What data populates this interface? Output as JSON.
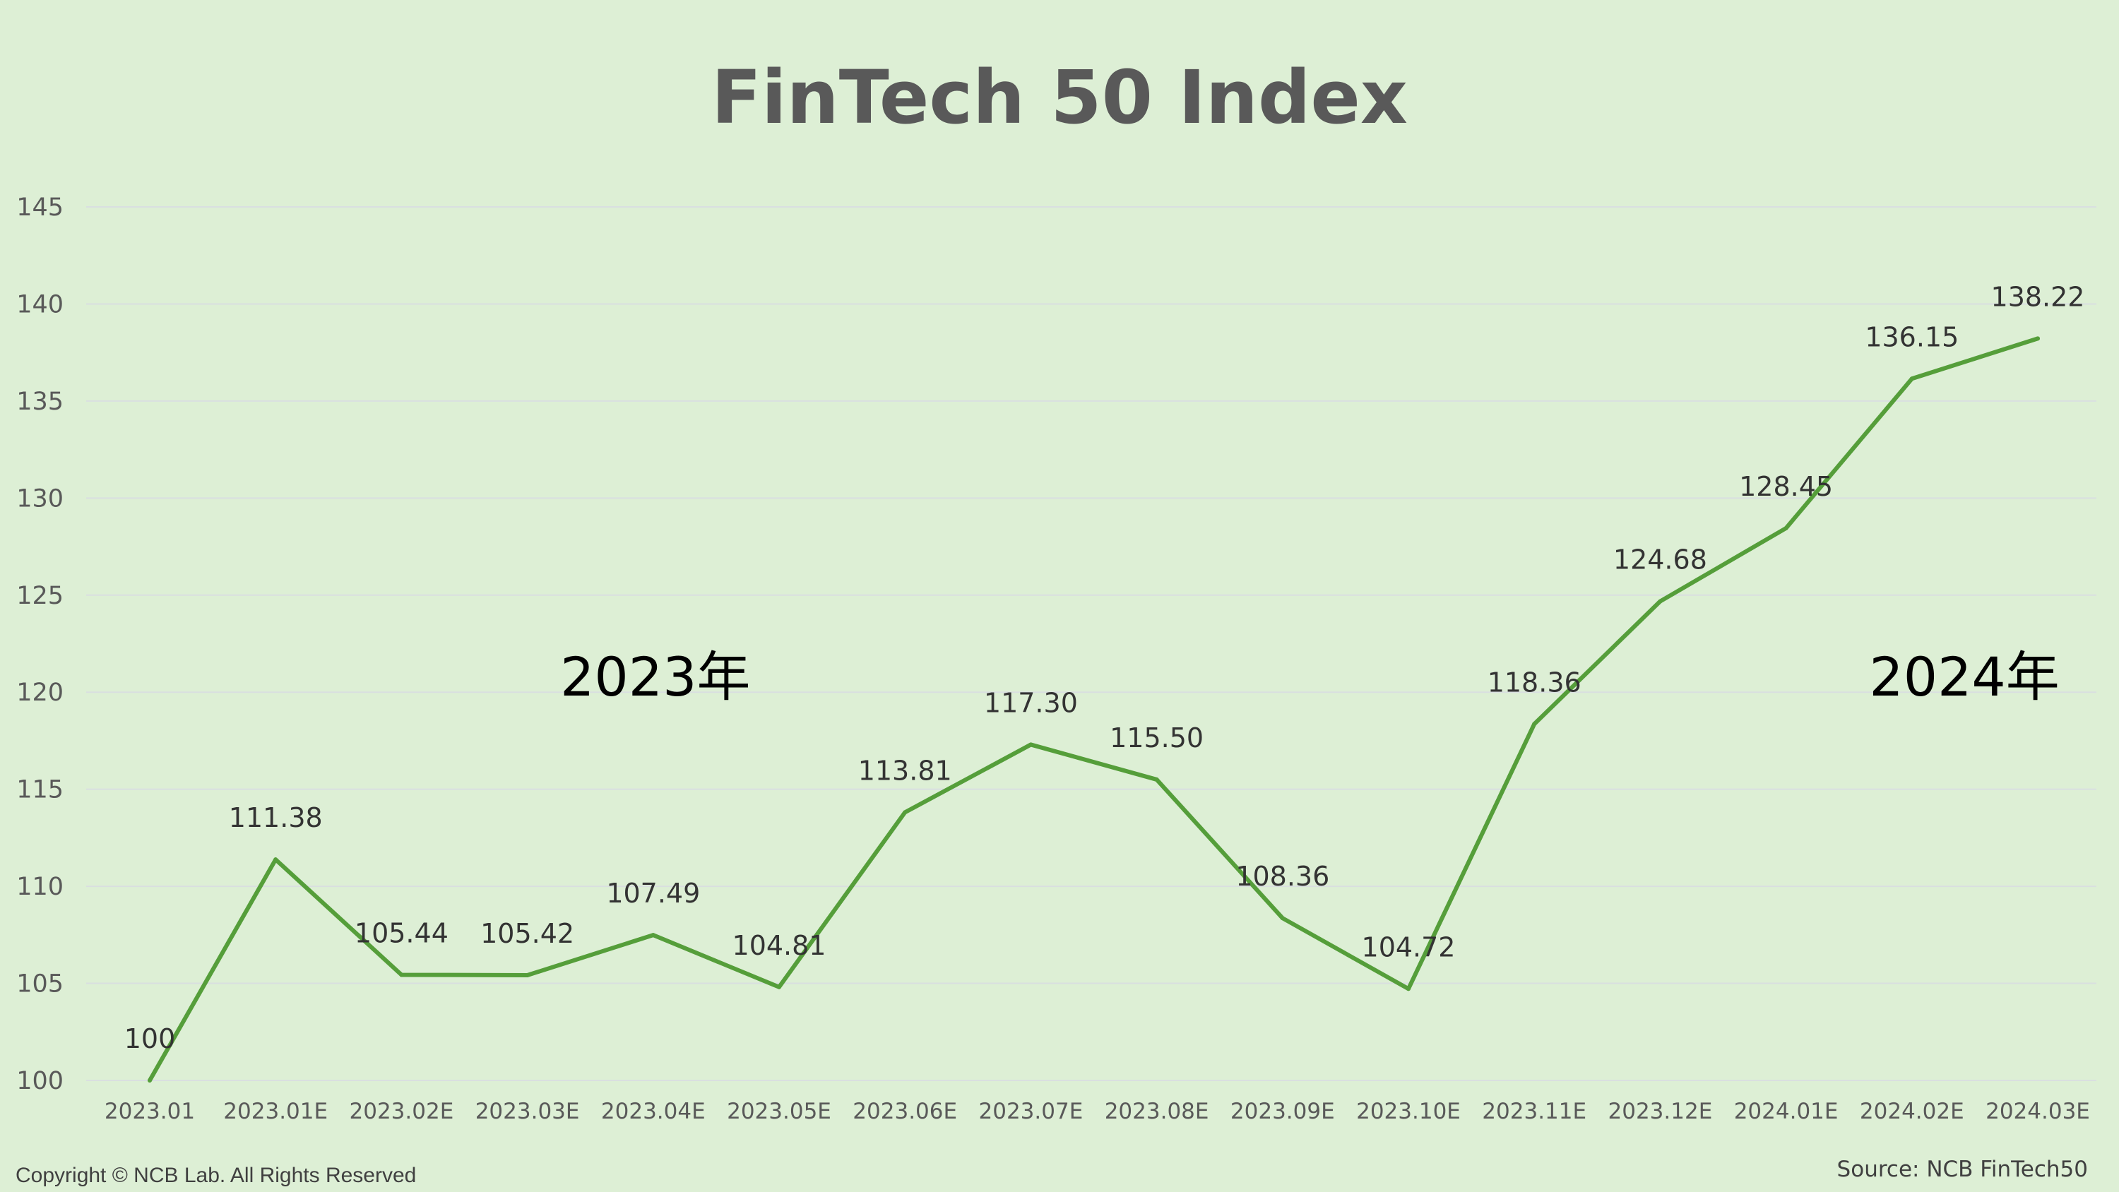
{
  "chart_data": {
    "type": "line",
    "title": "FinTech 50 Index",
    "categories": [
      "2023.01",
      "2023.01E",
      "2023.02E",
      "2023.03E",
      "2023.04E",
      "2023.05E",
      "2023.06E",
      "2023.07E",
      "2023.08E",
      "2023.09E",
      "2023.10E",
      "2023.11E",
      "2023.12E",
      "2024.01E",
      "2024.02E",
      "2024.03E"
    ],
    "series": [
      {
        "values": [
          100,
          111.38,
          105.44,
          105.42,
          107.49,
          104.81,
          113.81,
          117.3,
          115.5,
          108.36,
          104.72,
          118.36,
          124.68,
          128.45,
          136.15,
          138.22
        ],
        "labels": [
          "100",
          "111.38",
          "105.44",
          "105.42",
          "107.49",
          "104.81",
          "113.81",
          "117.30",
          "115.50",
          "108.36",
          "104.72",
          "118.36",
          "124.68",
          "128.45",
          "136.15",
          "138.22"
        ],
        "color": "#559e3a"
      }
    ],
    "ylim": [
      100,
      145
    ],
    "yticks": [
      100,
      105,
      110,
      115,
      120,
      125,
      130,
      135,
      140,
      145
    ],
    "grid": true,
    "legend": "none",
    "annotations": [
      {
        "text": "2023年",
        "category_index": 4
      },
      {
        "text": "2024年",
        "category_index": 14.4
      }
    ]
  },
  "footer": {
    "copyright": "Copyright © NCB Lab. All Rights Reserved",
    "source": "Source: NCB FinTech50"
  },
  "colors": {
    "background": "#ddefd5",
    "line": "#559e3a",
    "title": "#595959"
  }
}
